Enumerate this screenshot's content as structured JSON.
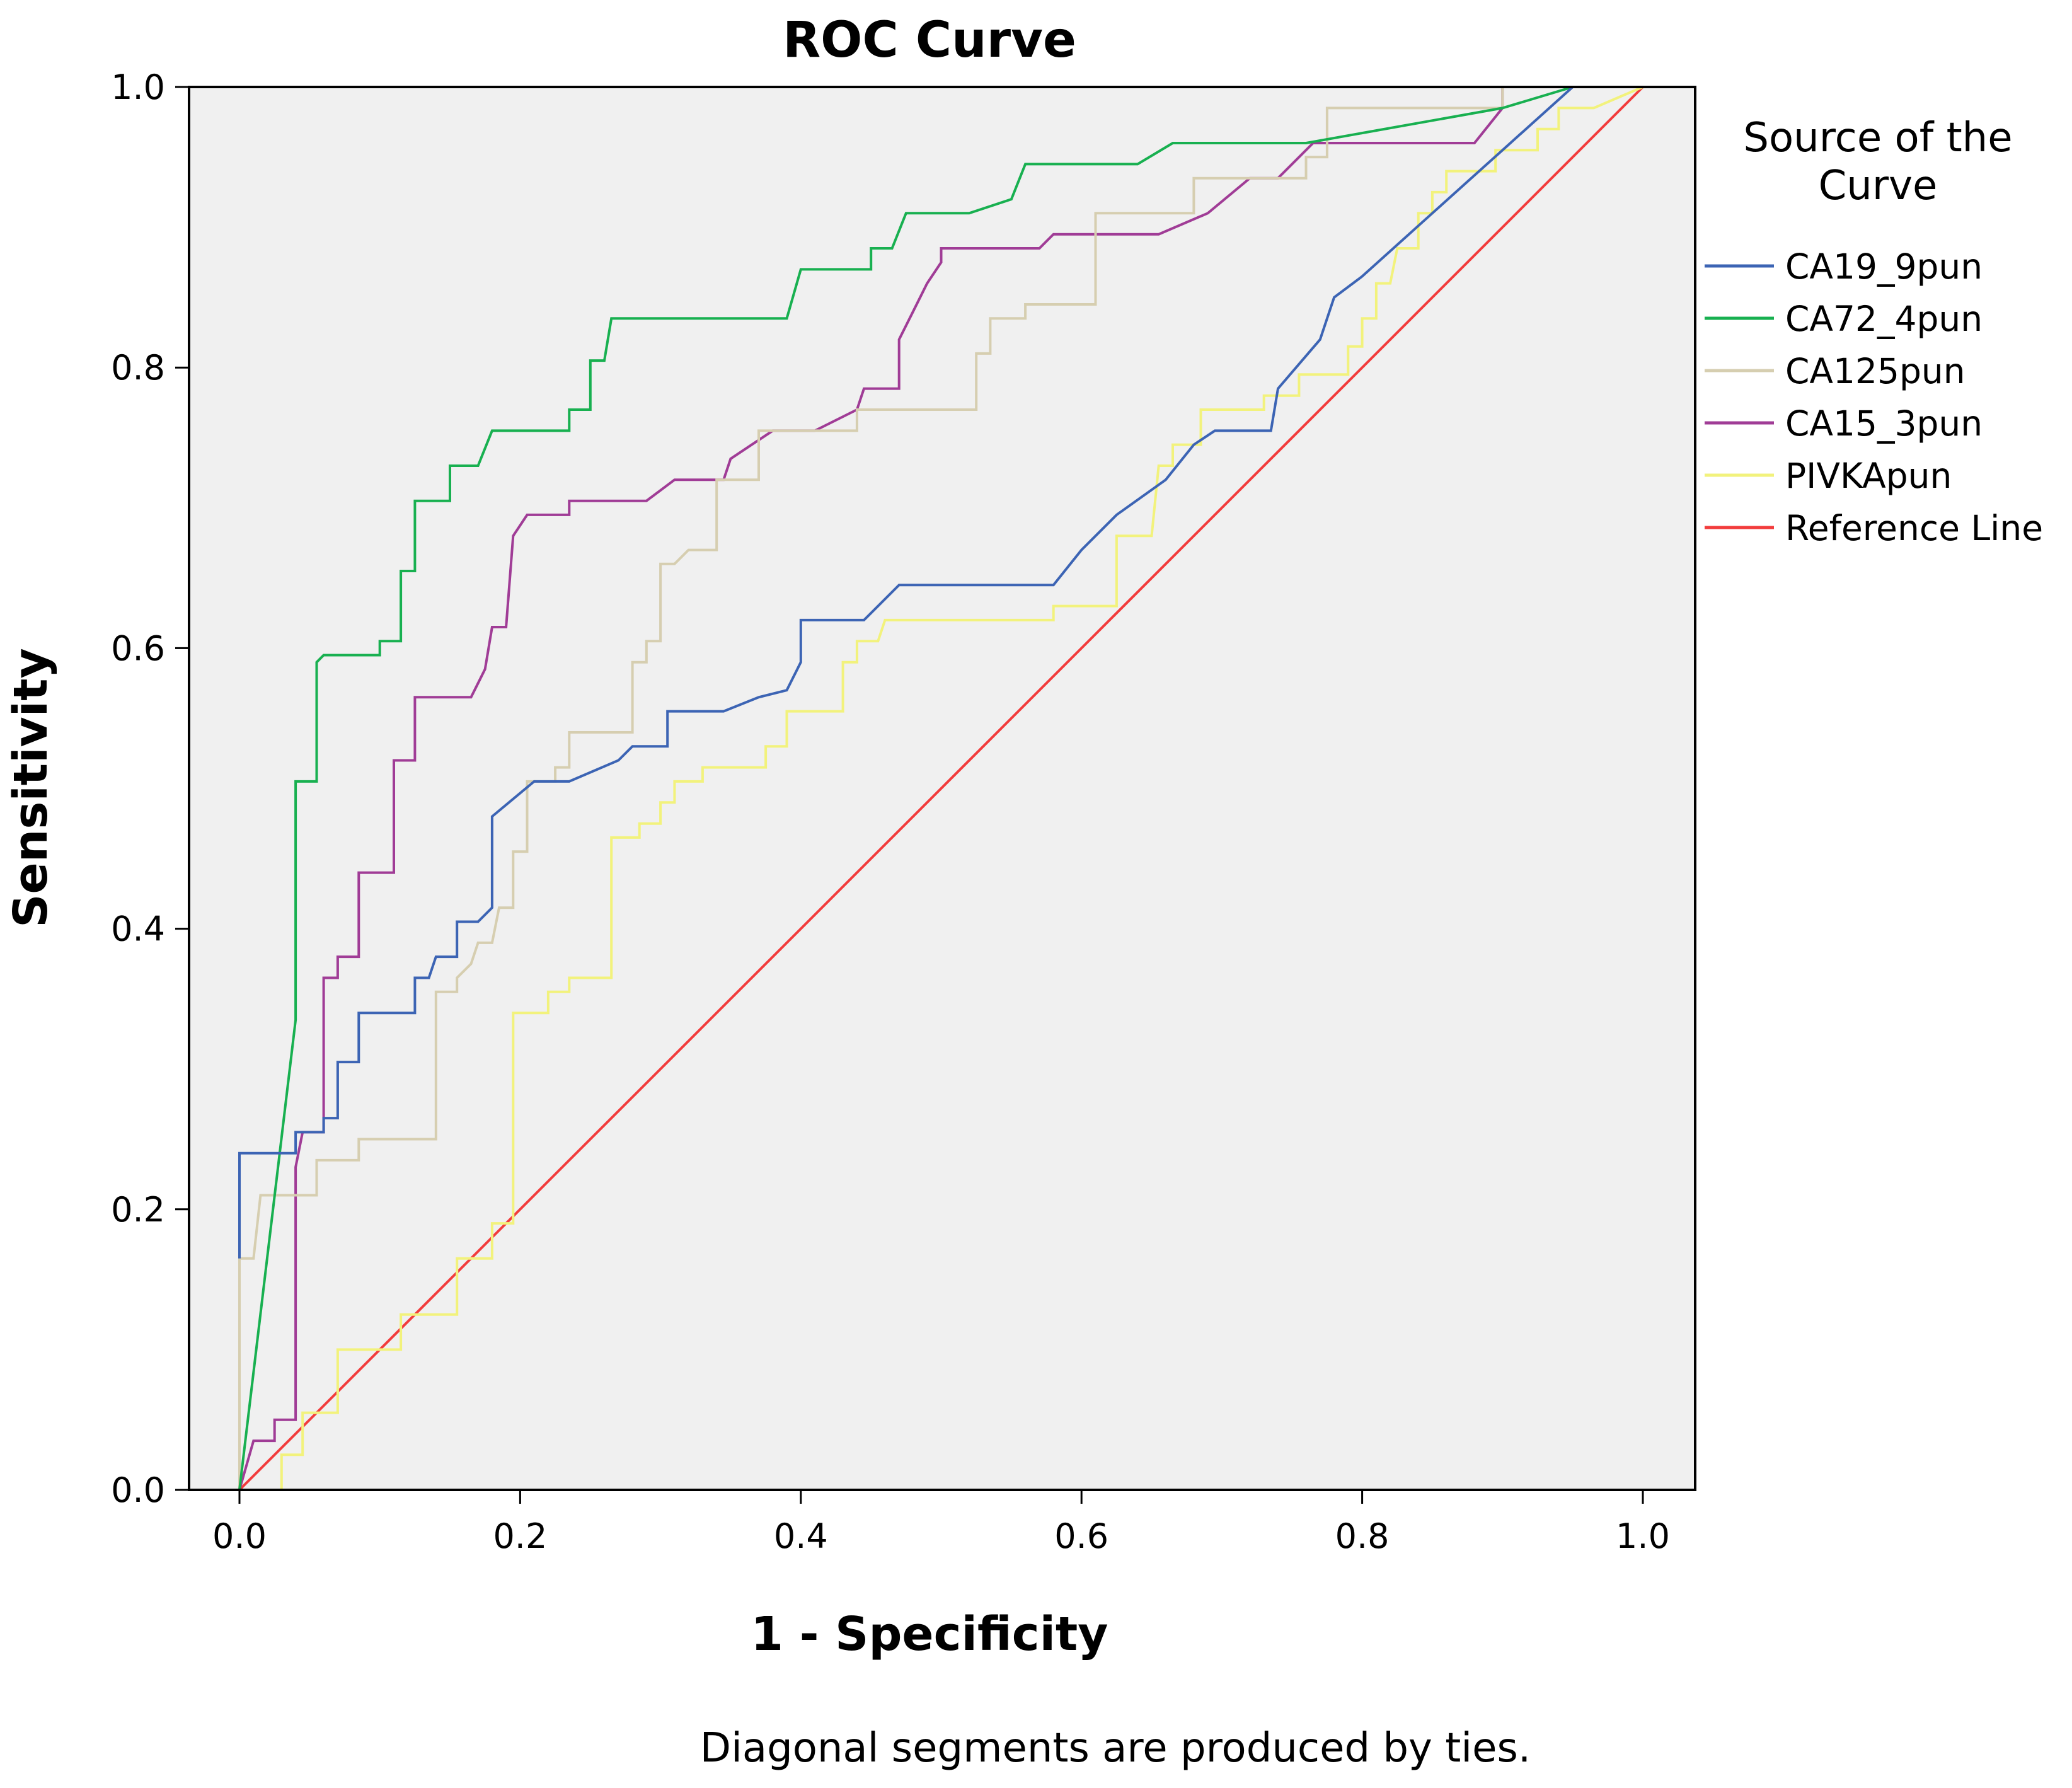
{
  "chart_data": {
    "type": "line",
    "title": "ROC Curve",
    "xlabel": "1 - Specificity",
    "ylabel": "Sensitivity",
    "xlim": [
      0,
      1
    ],
    "ylim": [
      0,
      1
    ],
    "xticks": [
      "0.0",
      "0.2",
      "0.4",
      "0.6",
      "0.8",
      "1.0"
    ],
    "yticks": [
      "0.0",
      "0.2",
      "0.4",
      "0.6",
      "0.8",
      "1.0"
    ],
    "grid": false,
    "legend_title": "Source of the Curve",
    "legend_title_lines": [
      "Source of the",
      "Curve"
    ],
    "legend_position": "right",
    "footnote": "Diagonal segments are produced by ties.",
    "colors": {
      "plot_background": "#f0f0f0",
      "axis": "#000000"
    },
    "series": [
      {
        "name": "CA19_9pun",
        "color": "#3c64b4",
        "points": [
          [
            0,
            0.165
          ],
          [
            0,
            0.24
          ],
          [
            0.04,
            0.24
          ],
          [
            0.04,
            0.255
          ],
          [
            0.06,
            0.255
          ],
          [
            0.06,
            0.265
          ],
          [
            0.07,
            0.265
          ],
          [
            0.07,
            0.305
          ],
          [
            0.085,
            0.305
          ],
          [
            0.085,
            0.34
          ],
          [
            0.125,
            0.34
          ],
          [
            0.125,
            0.365
          ],
          [
            0.135,
            0.365
          ],
          [
            0.14,
            0.38
          ],
          [
            0.155,
            0.38
          ],
          [
            0.155,
            0.405
          ],
          [
            0.17,
            0.405
          ],
          [
            0.18,
            0.415
          ],
          [
            0.18,
            0.48
          ],
          [
            0.21,
            0.505
          ],
          [
            0.235,
            0.505
          ],
          [
            0.27,
            0.52
          ],
          [
            0.28,
            0.53
          ],
          [
            0.305,
            0.53
          ],
          [
            0.305,
            0.555
          ],
          [
            0.345,
            0.555
          ],
          [
            0.37,
            0.565
          ],
          [
            0.39,
            0.57
          ],
          [
            0.4,
            0.59
          ],
          [
            0.4,
            0.62
          ],
          [
            0.445,
            0.62
          ],
          [
            0.47,
            0.645
          ],
          [
            0.58,
            0.645
          ],
          [
            0.6,
            0.67
          ],
          [
            0.625,
            0.695
          ],
          [
            0.66,
            0.72
          ],
          [
            0.68,
            0.745
          ],
          [
            0.695,
            0.755
          ],
          [
            0.735,
            0.755
          ],
          [
            0.74,
            0.785
          ],
          [
            0.77,
            0.82
          ],
          [
            0.78,
            0.85
          ],
          [
            0.8,
            0.865
          ],
          [
            0.85,
            0.91
          ],
          [
            0.9,
            0.955
          ],
          [
            0.95,
            1.0
          ],
          [
            1,
            1
          ]
        ]
      },
      {
        "name": "CA72_4pun",
        "color": "#18b050",
        "points": [
          [
            0,
            0
          ],
          [
            0.04,
            0.335
          ],
          [
            0.04,
            0.505
          ],
          [
            0.055,
            0.505
          ],
          [
            0.055,
            0.59
          ],
          [
            0.06,
            0.595
          ],
          [
            0.1,
            0.595
          ],
          [
            0.1,
            0.605
          ],
          [
            0.115,
            0.605
          ],
          [
            0.115,
            0.655
          ],
          [
            0.125,
            0.655
          ],
          [
            0.125,
            0.705
          ],
          [
            0.15,
            0.705
          ],
          [
            0.15,
            0.73
          ],
          [
            0.17,
            0.73
          ],
          [
            0.18,
            0.755
          ],
          [
            0.235,
            0.755
          ],
          [
            0.235,
            0.77
          ],
          [
            0.25,
            0.77
          ],
          [
            0.25,
            0.805
          ],
          [
            0.26,
            0.805
          ],
          [
            0.265,
            0.835
          ],
          [
            0.39,
            0.835
          ],
          [
            0.4,
            0.87
          ],
          [
            0.435,
            0.87
          ],
          [
            0.45,
            0.87
          ],
          [
            0.45,
            0.885
          ],
          [
            0.465,
            0.885
          ],
          [
            0.475,
            0.91
          ],
          [
            0.52,
            0.91
          ],
          [
            0.55,
            0.92
          ],
          [
            0.56,
            0.945
          ],
          [
            0.64,
            0.945
          ],
          [
            0.665,
            0.96
          ],
          [
            0.76,
            0.96
          ],
          [
            0.9,
            0.985
          ],
          [
            0.95,
            1.0
          ],
          [
            1,
            1
          ]
        ]
      },
      {
        "name": "CA125pun",
        "color": "#d6ceb0",
        "points": [
          [
            0,
            0
          ],
          [
            0,
            0.165
          ],
          [
            0.01,
            0.165
          ],
          [
            0.015,
            0.21
          ],
          [
            0.055,
            0.21
          ],
          [
            0.055,
            0.235
          ],
          [
            0.085,
            0.235
          ],
          [
            0.085,
            0.25
          ],
          [
            0.14,
            0.25
          ],
          [
            0.14,
            0.355
          ],
          [
            0.155,
            0.355
          ],
          [
            0.155,
            0.365
          ],
          [
            0.165,
            0.375
          ],
          [
            0.17,
            0.39
          ],
          [
            0.18,
            0.39
          ],
          [
            0.185,
            0.415
          ],
          [
            0.195,
            0.415
          ],
          [
            0.195,
            0.455
          ],
          [
            0.205,
            0.455
          ],
          [
            0.205,
            0.505
          ],
          [
            0.225,
            0.505
          ],
          [
            0.225,
            0.515
          ],
          [
            0.235,
            0.515
          ],
          [
            0.235,
            0.54
          ],
          [
            0.28,
            0.54
          ],
          [
            0.28,
            0.59
          ],
          [
            0.29,
            0.59
          ],
          [
            0.29,
            0.605
          ],
          [
            0.3,
            0.605
          ],
          [
            0.3,
            0.66
          ],
          [
            0.31,
            0.66
          ],
          [
            0.32,
            0.67
          ],
          [
            0.34,
            0.67
          ],
          [
            0.34,
            0.72
          ],
          [
            0.37,
            0.72
          ],
          [
            0.37,
            0.755
          ],
          [
            0.44,
            0.755
          ],
          [
            0.44,
            0.77
          ],
          [
            0.525,
            0.77
          ],
          [
            0.525,
            0.81
          ],
          [
            0.535,
            0.81
          ],
          [
            0.535,
            0.835
          ],
          [
            0.56,
            0.835
          ],
          [
            0.56,
            0.845
          ],
          [
            0.61,
            0.845
          ],
          [
            0.61,
            0.91
          ],
          [
            0.68,
            0.91
          ],
          [
            0.68,
            0.935
          ],
          [
            0.76,
            0.935
          ],
          [
            0.76,
            0.95
          ],
          [
            0.775,
            0.95
          ],
          [
            0.775,
            0.985
          ],
          [
            0.9,
            0.985
          ],
          [
            0.9,
            1.0
          ],
          [
            1,
            1
          ]
        ]
      },
      {
        "name": "CA15_3pun",
        "color": "#a03c96",
        "points": [
          [
            0,
            0
          ],
          [
            0.01,
            0.035
          ],
          [
            0.025,
            0.035
          ],
          [
            0.025,
            0.05
          ],
          [
            0.04,
            0.05
          ],
          [
            0.04,
            0.23
          ],
          [
            0.045,
            0.255
          ],
          [
            0.06,
            0.255
          ],
          [
            0.06,
            0.365
          ],
          [
            0.07,
            0.365
          ],
          [
            0.07,
            0.38
          ],
          [
            0.085,
            0.38
          ],
          [
            0.085,
            0.44
          ],
          [
            0.11,
            0.44
          ],
          [
            0.11,
            0.52
          ],
          [
            0.125,
            0.52
          ],
          [
            0.125,
            0.565
          ],
          [
            0.165,
            0.565
          ],
          [
            0.175,
            0.585
          ],
          [
            0.18,
            0.615
          ],
          [
            0.19,
            0.615
          ],
          [
            0.195,
            0.68
          ],
          [
            0.205,
            0.695
          ],
          [
            0.235,
            0.695
          ],
          [
            0.235,
            0.705
          ],
          [
            0.29,
            0.705
          ],
          [
            0.31,
            0.72
          ],
          [
            0.345,
            0.72
          ],
          [
            0.35,
            0.735
          ],
          [
            0.365,
            0.745
          ],
          [
            0.38,
            0.755
          ],
          [
            0.41,
            0.755
          ],
          [
            0.44,
            0.77
          ],
          [
            0.445,
            0.785
          ],
          [
            0.47,
            0.785
          ],
          [
            0.47,
            0.82
          ],
          [
            0.48,
            0.84
          ],
          [
            0.49,
            0.86
          ],
          [
            0.5,
            0.875
          ],
          [
            0.5,
            0.885
          ],
          [
            0.57,
            0.885
          ],
          [
            0.58,
            0.895
          ],
          [
            0.655,
            0.895
          ],
          [
            0.69,
            0.91
          ],
          [
            0.72,
            0.935
          ],
          [
            0.74,
            0.935
          ],
          [
            0.765,
            0.96
          ],
          [
            0.88,
            0.96
          ],
          [
            0.9,
            0.985
          ],
          [
            0.9,
            1.0
          ],
          [
            1,
            1
          ]
        ]
      },
      {
        "name": "PIVKApun",
        "color": "#f2f27c",
        "points": [
          [
            0,
            0
          ],
          [
            0.03,
            0
          ],
          [
            0.03,
            0.025
          ],
          [
            0.045,
            0.025
          ],
          [
            0.045,
            0.055
          ],
          [
            0.07,
            0.055
          ],
          [
            0.07,
            0.1
          ],
          [
            0.115,
            0.1
          ],
          [
            0.115,
            0.125
          ],
          [
            0.155,
            0.125
          ],
          [
            0.155,
            0.165
          ],
          [
            0.18,
            0.165
          ],
          [
            0.18,
            0.19
          ],
          [
            0.195,
            0.19
          ],
          [
            0.195,
            0.34
          ],
          [
            0.22,
            0.34
          ],
          [
            0.22,
            0.355
          ],
          [
            0.235,
            0.355
          ],
          [
            0.235,
            0.365
          ],
          [
            0.265,
            0.365
          ],
          [
            0.265,
            0.465
          ],
          [
            0.285,
            0.465
          ],
          [
            0.285,
            0.475
          ],
          [
            0.3,
            0.475
          ],
          [
            0.3,
            0.49
          ],
          [
            0.31,
            0.49
          ],
          [
            0.31,
            0.505
          ],
          [
            0.33,
            0.505
          ],
          [
            0.33,
            0.515
          ],
          [
            0.375,
            0.515
          ],
          [
            0.375,
            0.53
          ],
          [
            0.39,
            0.53
          ],
          [
            0.39,
            0.555
          ],
          [
            0.43,
            0.555
          ],
          [
            0.43,
            0.59
          ],
          [
            0.44,
            0.59
          ],
          [
            0.44,
            0.605
          ],
          [
            0.455,
            0.605
          ],
          [
            0.46,
            0.62
          ],
          [
            0.58,
            0.62
          ],
          [
            0.58,
            0.63
          ],
          [
            0.625,
            0.63
          ],
          [
            0.625,
            0.68
          ],
          [
            0.65,
            0.68
          ],
          [
            0.655,
            0.73
          ],
          [
            0.665,
            0.73
          ],
          [
            0.665,
            0.745
          ],
          [
            0.685,
            0.745
          ],
          [
            0.685,
            0.77
          ],
          [
            0.73,
            0.77
          ],
          [
            0.73,
            0.78
          ],
          [
            0.755,
            0.78
          ],
          [
            0.755,
            0.795
          ],
          [
            0.79,
            0.795
          ],
          [
            0.79,
            0.815
          ],
          [
            0.8,
            0.815
          ],
          [
            0.8,
            0.835
          ],
          [
            0.81,
            0.835
          ],
          [
            0.81,
            0.86
          ],
          [
            0.82,
            0.86
          ],
          [
            0.825,
            0.885
          ],
          [
            0.84,
            0.885
          ],
          [
            0.84,
            0.91
          ],
          [
            0.85,
            0.91
          ],
          [
            0.85,
            0.925
          ],
          [
            0.86,
            0.925
          ],
          [
            0.86,
            0.94
          ],
          [
            0.895,
            0.94
          ],
          [
            0.895,
            0.955
          ],
          [
            0.925,
            0.955
          ],
          [
            0.925,
            0.97
          ],
          [
            0.94,
            0.97
          ],
          [
            0.94,
            0.985
          ],
          [
            0.965,
            0.985
          ],
          [
            1,
            1
          ]
        ]
      },
      {
        "name": "Reference Line",
        "color": "#f23c3c",
        "points": [
          [
            0,
            0
          ],
          [
            1,
            1
          ]
        ]
      }
    ]
  }
}
